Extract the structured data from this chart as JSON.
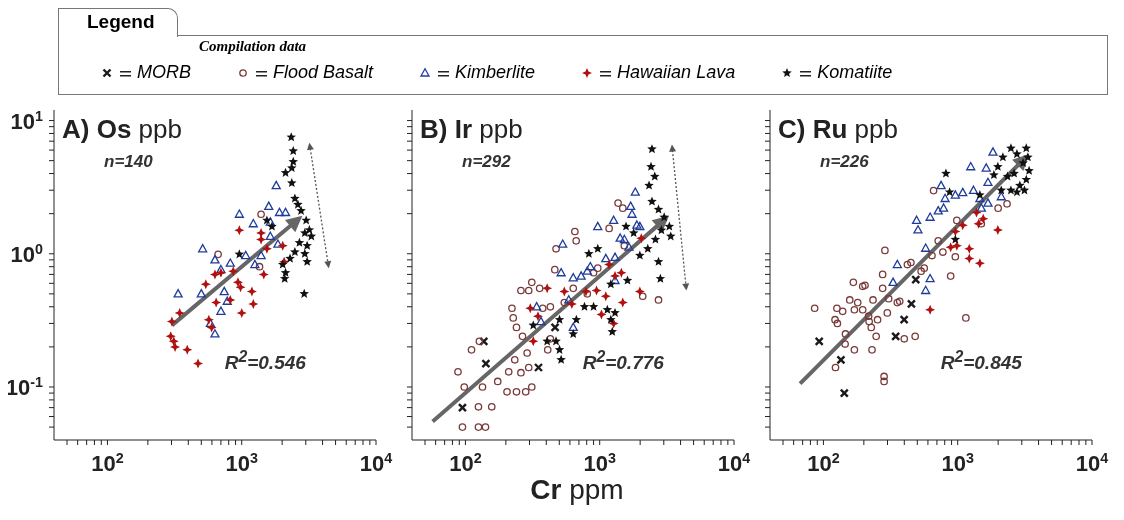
{
  "chart_data": [
    {
      "type": "scatter",
      "title": "A) Os ppb",
      "subtitle": "n=140",
      "annotations": [
        "R$^{2}$=0.546"
      ],
      "log": "xy",
      "xlim": [
        40,
        10000
      ],
      "ylim": [
        0.04,
        12
      ],
      "xticks": [
        {
          "value": 50,
          "label": null
        },
        {
          "value": 60,
          "label": null
        },
        {
          "value": 70,
          "label": null
        },
        {
          "value": 80,
          "label": null
        },
        {
          "value": 90,
          "label": null
        },
        {
          "value": 100,
          "label": "10$^{2}$"
        },
        {
          "value": 200,
          "label": null
        },
        {
          "value": 300,
          "label": null
        },
        {
          "value": 400,
          "label": null
        },
        {
          "value": 500,
          "label": null
        },
        {
          "value": 600,
          "label": null
        },
        {
          "value": 700,
          "label": null
        },
        {
          "value": 800,
          "label": null
        },
        {
          "value": 900,
          "label": null
        },
        {
          "value": 1000,
          "label": "10$^{3}$"
        },
        {
          "value": 2000,
          "label": null
        },
        {
          "value": 3000,
          "label": null
        },
        {
          "value": 4000,
          "label": null
        },
        {
          "value": 5000,
          "label": null
        },
        {
          "value": 6000,
          "label": null
        },
        {
          "value": 7000,
          "label": null
        },
        {
          "value": 8000,
          "label": null
        },
        {
          "value": 9000,
          "label": null
        },
        {
          "value": 10000,
          "label": "10$^{4}$"
        }
      ],
      "yticks": [
        {
          "value": 0.05,
          "label": null
        },
        {
          "value": 0.06,
          "label": null
        },
        {
          "value": 0.07,
          "label": null
        },
        {
          "value": 0.08,
          "label": null
        },
        {
          "value": 0.09,
          "label": null
        },
        {
          "value": 0.1,
          "label": "10$^{-1}$"
        },
        {
          "value": 0.2,
          "label": null
        },
        {
          "value": 0.3,
          "label": null
        },
        {
          "value": 0.4,
          "label": null
        },
        {
          "value": 0.5,
          "label": null
        },
        {
          "value": 0.6,
          "label": null
        },
        {
          "value": 0.7,
          "label": null
        },
        {
          "value": 0.8,
          "label": null
        },
        {
          "value": 0.9,
          "label": null
        },
        {
          "value": 1,
          "label": "10$^{0}$"
        },
        {
          "value": 2,
          "label": null
        },
        {
          "value": 3,
          "label": null
        },
        {
          "value": 4,
          "label": null
        },
        {
          "value": 5,
          "label": null
        },
        {
          "value": 6,
          "label": null
        },
        {
          "value": 7,
          "label": null
        },
        {
          "value": 8,
          "label": null
        },
        {
          "value": 9,
          "label": null
        },
        {
          "value": 10,
          "label": "10$^{1}$"
        }
      ],
      "series": [
        {
          "color": "#7a3a3a",
          "marker": "circle",
          "x": [
            1394,
            667,
            1357
          ],
          "values": [
            1.98,
            0.99,
            0.8
          ]
        },
        {
          "color": "#1e3c9c",
          "marker": "triangle",
          "x": [
            336,
            512,
            500,
            584,
            632,
            632,
            700,
            741,
            780,
            700,
            822,
            960,
            1071,
            1220,
            1253,
            1394,
            1590,
            1633,
            1807,
            1910,
            2120,
            1860,
            1633
          ],
          "values": [
            0.5,
            1.09,
            0.5,
            0.3,
            0.25,
            0.9,
            0.76,
            0.52,
            0.44,
            0.37,
            0.85,
            1.98,
            0.97,
            1.68,
            0.83,
            0.97,
            2.27,
            1.73,
            3.25,
            2.04,
            2.04,
            1.18,
            1.35
          ]
        },
        {
          "color": "#b01010",
          "marker": "diamond",
          "x": [
            345,
            302,
            296,
            319,
            312,
            393,
            473,
            540,
            569,
            597,
            632,
            645,
            700,
            822,
            865,
            938,
            960,
            980,
            1000,
            1191,
            1220,
            1394,
            1394,
            1460,
            1540,
            2020,
            2070
          ],
          "values": [
            0.36,
            0.31,
            0.24,
            0.2,
            0.22,
            0.19,
            0.15,
            0.59,
            0.32,
            0.28,
            0.7,
            0.43,
            0.72,
            0.45,
            0.74,
            0.61,
            1.5,
            0.56,
            0.36,
            0.52,
            0.42,
            1.43,
            1.28,
            0.7,
            1.09,
            1.15,
            0.87
          ]
        },
        {
          "color": "#111111",
          "marker": "star",
          "x": [
            2337,
            2420,
            2420,
            2360,
            2120,
            2360,
            2488,
            2620,
            2767,
            3020,
            3190,
            2950,
            3300,
            2690,
            3071,
            2488,
            2950,
            2290,
            2020,
            2120,
            2090,
            3071,
            2920,
            1540,
            1680,
            960
          ],
          "values": [
            7.5,
            5.9,
            4.9,
            4.4,
            4.05,
            3.4,
            2.6,
            2.34,
            2.1,
            1.78,
            1.51,
            1.43,
            1.35,
            1.21,
            1.15,
            1.03,
            1.0,
            0.92,
            0.83,
            0.72,
            0.65,
            0.87,
            0.5,
            1.78,
            1.6,
            0.99
          ]
        }
      ]
    },
    {
      "type": "scatter",
      "title": "B) Ir ppb",
      "subtitle": "n=292",
      "xlabel": "Cr ppm",
      "legend": "top",
      "legend_title": "Legend",
      "annotations": [
        "R$^{2}$=0.776",
        "Compilation data"
      ],
      "log": "xy",
      "tick_labels": "x",
      "xlim": [
        40,
        10000
      ],
      "ylim": [
        0.04,
        12
      ],
      "xticks": [
        {
          "value": 50,
          "label": null
        },
        {
          "value": 60,
          "label": null
        },
        {
          "value": 70,
          "label": null
        },
        {
          "value": 80,
          "label": null
        },
        {
          "value": 90,
          "label": null
        },
        {
          "value": 100,
          "label": "10$^{2}$"
        },
        {
          "value": 200,
          "label": null
        },
        {
          "value": 300,
          "label": null
        },
        {
          "value": 400,
          "label": null
        },
        {
          "value": 500,
          "label": null
        },
        {
          "value": 600,
          "label": null
        },
        {
          "value": 700,
          "label": null
        },
        {
          "value": 800,
          "label": null
        },
        {
          "value": 900,
          "label": null
        },
        {
          "value": 1000,
          "label": "10$^{3}$"
        },
        {
          "value": 2000,
          "label": null
        },
        {
          "value": 3000,
          "label": null
        },
        {
          "value": 4000,
          "label": null
        },
        {
          "value": 5000,
          "label": null
        },
        {
          "value": 6000,
          "label": null
        },
        {
          "value": 7000,
          "label": null
        },
        {
          "value": 8000,
          "label": null
        },
        {
          "value": 9000,
          "label": null
        },
        {
          "value": 10000,
          "label": "10$^{4}$"
        }
      ],
      "yticks": [
        {
          "value": 0.05,
          "label": null
        },
        {
          "value": 0.06,
          "label": null
        },
        {
          "value": 0.07,
          "label": null
        },
        {
          "value": 0.08,
          "label": null
        },
        {
          "value": 0.09,
          "label": null
        },
        {
          "value": 0.1,
          "label": null
        },
        {
          "value": 0.2,
          "label": null
        },
        {
          "value": 0.3,
          "label": null
        },
        {
          "value": 0.4,
          "label": null
        },
        {
          "value": 0.5,
          "label": null
        },
        {
          "value": 0.6,
          "label": null
        },
        {
          "value": 0.7,
          "label": null
        },
        {
          "value": 0.8,
          "label": null
        },
        {
          "value": 0.9,
          "label": null
        },
        {
          "value": 1,
          "label": null
        },
        {
          "value": 2,
          "label": null
        },
        {
          "value": 3,
          "label": null
        },
        {
          "value": 4,
          "label": null
        },
        {
          "value": 5,
          "label": null
        },
        {
          "value": 6,
          "label": null
        },
        {
          "value": 7,
          "label": null
        },
        {
          "value": 8,
          "label": null
        },
        {
          "value": 9,
          "label": null
        },
        {
          "value": 10,
          "label": null
        }
      ],
      "series": [
        {
          "name": "MORB",
          "color": "#1a1a1a",
          "marker": "cross",
          "x": [
            95,
            142,
            137,
            350,
            465
          ],
          "values": [
            0.07,
            0.15,
            0.22,
            0.14,
            0.28
          ]
        },
        {
          "name": "Flood Basalt",
          "color": "#7a3a3a",
          "marker": "circle",
          "x": [
            95,
            125,
            141,
            125,
            157,
            98,
            88,
            111,
            127,
            134,
            174,
            204,
            240,
            281,
            312,
            210,
            259,
            296,
            233,
            288,
            266,
            240,
            222,
            227,
            259,
            296,
            312,
            357,
            376,
            429,
            429,
            410,
            463,
            473,
            653,
            668,
            635,
            808,
            900,
            967,
            1175,
            1370,
            1485,
            1525,
            2090,
            2740,
            545
          ],
          "values": [
            0.05,
            0.05,
            0.05,
            0.071,
            0.071,
            0.1,
            0.13,
            0.19,
            0.22,
            0.1,
            0.11,
            0.092,
            0.092,
            0.092,
            0.1,
            0.13,
            0.128,
            0.14,
            0.16,
            0.18,
            0.24,
            0.28,
            0.39,
            0.33,
            0.53,
            0.53,
            0.61,
            0.55,
            0.39,
            0.4,
            0.23,
            0.19,
            0.76,
            1.09,
            1.47,
            1.25,
            0.55,
            0.5,
            0.72,
            0.78,
            1.55,
            2.4,
            2.2,
            1.15,
            0.48,
            0.45,
            0.43
          ]
        },
        {
          "name": "Kimberlite",
          "color": "#1e3c9c",
          "marker": "triangle",
          "x": [
            339,
            365,
            516,
            530,
            635,
            588,
            635,
            727,
            808,
            851,
            967,
            1110,
            1270,
            1300,
            1300,
            1420,
            1525,
            1700,
            1740,
            1840,
            1890,
            1990,
            1650
          ],
          "values": [
            0.4,
            0.31,
            0.72,
            1.18,
            0.66,
            0.45,
            0.28,
            0.68,
            0.74,
            0.8,
            1.6,
            0.92,
            1.78,
            0.94,
            0.63,
            1.31,
            1.28,
            2.27,
            1.98,
            2.9,
            1.64,
            1.6,
            1.12
          ]
        },
        {
          "name": "Hawaiian Lava",
          "color": "#b01010",
          "marker": "diamond",
          "x": [
            304,
            320,
            347,
            406,
            545,
            620,
            790,
            947,
            1110,
            1175,
            1300,
            1450,
            1485,
            1030,
            1270,
            1990,
            2040
          ],
          "values": [
            0.39,
            0.22,
            0.34,
            0.55,
            0.52,
            0.42,
            0.52,
            0.53,
            0.48,
            0.83,
            0.68,
            0.72,
            0.43,
            0.35,
            0.3,
            0.52,
            1.31
          ]
        },
        {
          "name": "Komatiite",
          "color": "#111111",
          "marker": "star",
          "x": [
            2450,
            2410,
            2570,
            2330,
            2450,
            2740,
            3020,
            3300,
            2880,
            3380,
            2600,
            2280,
            1990,
            2740,
            2830,
            1570,
            1790,
            830,
            967,
            1610,
            1210,
            770,
            900,
            1140,
            1300,
            1210,
            1240,
            670,
            635,
            502,
            473,
            502,
            516,
            406,
            320
          ],
          "values": [
            6.1,
            4.5,
            3.8,
            3.25,
            2.47,
            2.15,
            1.88,
            1.6,
            1.5,
            1.35,
            1.28,
            1.09,
            0.97,
            0.87,
            0.65,
            1.6,
            1.43,
            1.0,
            1.09,
            0.63,
            0.59,
            0.4,
            0.4,
            0.38,
            0.36,
            0.32,
            0.26,
            0.32,
            0.25,
            0.32,
            0.22,
            0.19,
            0.16,
            0.22,
            0.29
          ]
        }
      ]
    },
    {
      "type": "scatter",
      "title": "C) Ru ppb",
      "subtitle": "n=226",
      "annotations": [
        "R$^{2}$=0.845"
      ],
      "log": "xy",
      "tick_labels": "x",
      "xlim": [
        40,
        10000
      ],
      "ylim": [
        0.04,
        12
      ],
      "xticks": [
        {
          "value": 50,
          "label": null
        },
        {
          "value": 60,
          "label": null
        },
        {
          "value": 70,
          "label": null
        },
        {
          "value": 80,
          "label": null
        },
        {
          "value": 90,
          "label": null
        },
        {
          "value": 100,
          "label": "10$^{2}$"
        },
        {
          "value": 200,
          "label": null
        },
        {
          "value": 300,
          "label": null
        },
        {
          "value": 400,
          "label": null
        },
        {
          "value": 500,
          "label": null
        },
        {
          "value": 600,
          "label": null
        },
        {
          "value": 700,
          "label": null
        },
        {
          "value": 800,
          "label": null
        },
        {
          "value": 900,
          "label": null
        },
        {
          "value": 1000,
          "label": "10$^{3}$"
        },
        {
          "value": 2000,
          "label": null
        },
        {
          "value": 3000,
          "label": null
        },
        {
          "value": 4000,
          "label": null
        },
        {
          "value": 5000,
          "label": null
        },
        {
          "value": 6000,
          "label": null
        },
        {
          "value": 7000,
          "label": null
        },
        {
          "value": 8000,
          "label": null
        },
        {
          "value": 9000,
          "label": null
        },
        {
          "value": 10000,
          "label": "10$^{4}$"
        }
      ],
      "yticks": [
        {
          "value": 0.05,
          "label": null
        },
        {
          "value": 0.06,
          "label": null
        },
        {
          "value": 0.07,
          "label": null
        },
        {
          "value": 0.08,
          "label": null
        },
        {
          "value": 0.09,
          "label": null
        },
        {
          "value": 0.1,
          "label": null
        },
        {
          "value": 0.2,
          "label": null
        },
        {
          "value": 0.3,
          "label": null
        },
        {
          "value": 0.4,
          "label": null
        },
        {
          "value": 0.5,
          "label": null
        },
        {
          "value": 0.6,
          "label": null
        },
        {
          "value": 0.7,
          "label": null
        },
        {
          "value": 0.8,
          "label": null
        },
        {
          "value": 0.9,
          "label": null
        },
        {
          "value": 1,
          "label": null
        },
        {
          "value": 2,
          "label": null
        },
        {
          "value": 3,
          "label": null
        },
        {
          "value": 4,
          "label": null
        },
        {
          "value": 5,
          "label": null
        },
        {
          "value": 6,
          "label": null
        },
        {
          "value": 7,
          "label": null
        },
        {
          "value": 8,
          "label": null
        },
        {
          "value": 9,
          "label": null
        },
        {
          "value": 10,
          "label": null
        }
      ],
      "series": [
        {
          "color": "#1a1a1a",
          "marker": "cross",
          "x": [
            93,
            135,
            143,
            345,
            399,
            452,
            487
          ],
          "values": [
            0.22,
            0.16,
            0.09,
            0.24,
            0.32,
            0.42,
            0.64
          ]
        },
        {
          "color": "#7a3a3a",
          "marker": "circle",
          "x": [
            86,
            122,
            127,
            126,
            139,
            123,
            146,
            145,
            157,
            167,
            170,
            170,
            180,
            196,
            204,
            196,
            217,
            219,
            234,
            227,
            230,
            253,
            247,
            276,
            276,
            287,
            299,
            306,
            355,
            370,
            400,
            482,
            422,
            448,
            534,
            563,
            643,
            716,
            775,
            886,
            960,
            985,
            661,
            1150,
            1500,
            2000,
            2330,
            283,
            283
          ],
          "values": [
            0.39,
            0.32,
            0.3,
            0.39,
            0.37,
            0.14,
            0.25,
            0.21,
            0.45,
            0.61,
            0.38,
            0.19,
            0.43,
            0.57,
            0.58,
            0.38,
            0.34,
            0.31,
            0.45,
            0.28,
            0.19,
            0.32,
            0.24,
            0.7,
            0.55,
            1.06,
            0.36,
            0.46,
            0.43,
            0.44,
            0.23,
            0.24,
            0.83,
            0.86,
            0.74,
            0.78,
            0.97,
            1.25,
            1.03,
            0.68,
            0.95,
            1.78,
            2.98,
            0.33,
            1.68,
            2.2,
            2.37,
            0.12,
            0.11
          ]
        },
        {
          "color": "#1e3c9c",
          "marker": "triangle",
          "x": [
            330,
            355,
            577,
            623,
            577,
            494,
            506,
            623,
            716,
            785,
            752,
            805,
            960,
            1090,
            1250,
            1310,
            1500,
            1630,
            1680,
            1680,
            1830,
            2110,
            1462
          ],
          "values": [
            0.61,
            0.83,
            0.53,
            0.65,
            1.1,
            1.78,
            1.51,
            1.88,
            2.1,
            2.2,
            3.25,
            2.6,
            2.76,
            2.88,
            4.5,
            2.99,
            2.2,
            4.4,
            3.43,
            2.4,
            5.8,
            2.68,
            2.6
          ]
        },
        {
          "color": "#b01010",
          "marker": "diamond",
          "x": [
            623,
            886,
            985,
            960,
            1090,
            1220,
            1220,
            1462,
            1430,
            1550,
            1990,
            1380
          ],
          "values": [
            0.38,
            1.12,
            1.15,
            1.47,
            1.64,
            1.09,
            0.92,
            0.85,
            1.68,
            1.83,
            1.51,
            2.04
          ]
        },
        {
          "color": "#111111",
          "marker": "star",
          "x": [
            817,
            870,
            960,
            1462,
            1860,
            1990,
            2170,
            2490,
            3240,
            2760,
            3070,
            2630,
            3240,
            2900,
            2350,
            2110,
            2490,
            3140,
            2760,
            3400,
            3330
          ],
          "values": [
            4.0,
            2.9,
            1.28,
            2.76,
            3.9,
            4.5,
            5.3,
            6.2,
            6.2,
            5.6,
            4.8,
            4.0,
            3.6,
            3.25,
            3.8,
            2.99,
            2.99,
            2.99,
            2.9,
            4.2,
            5.3
          ]
        }
      ]
    }
  ]
}
